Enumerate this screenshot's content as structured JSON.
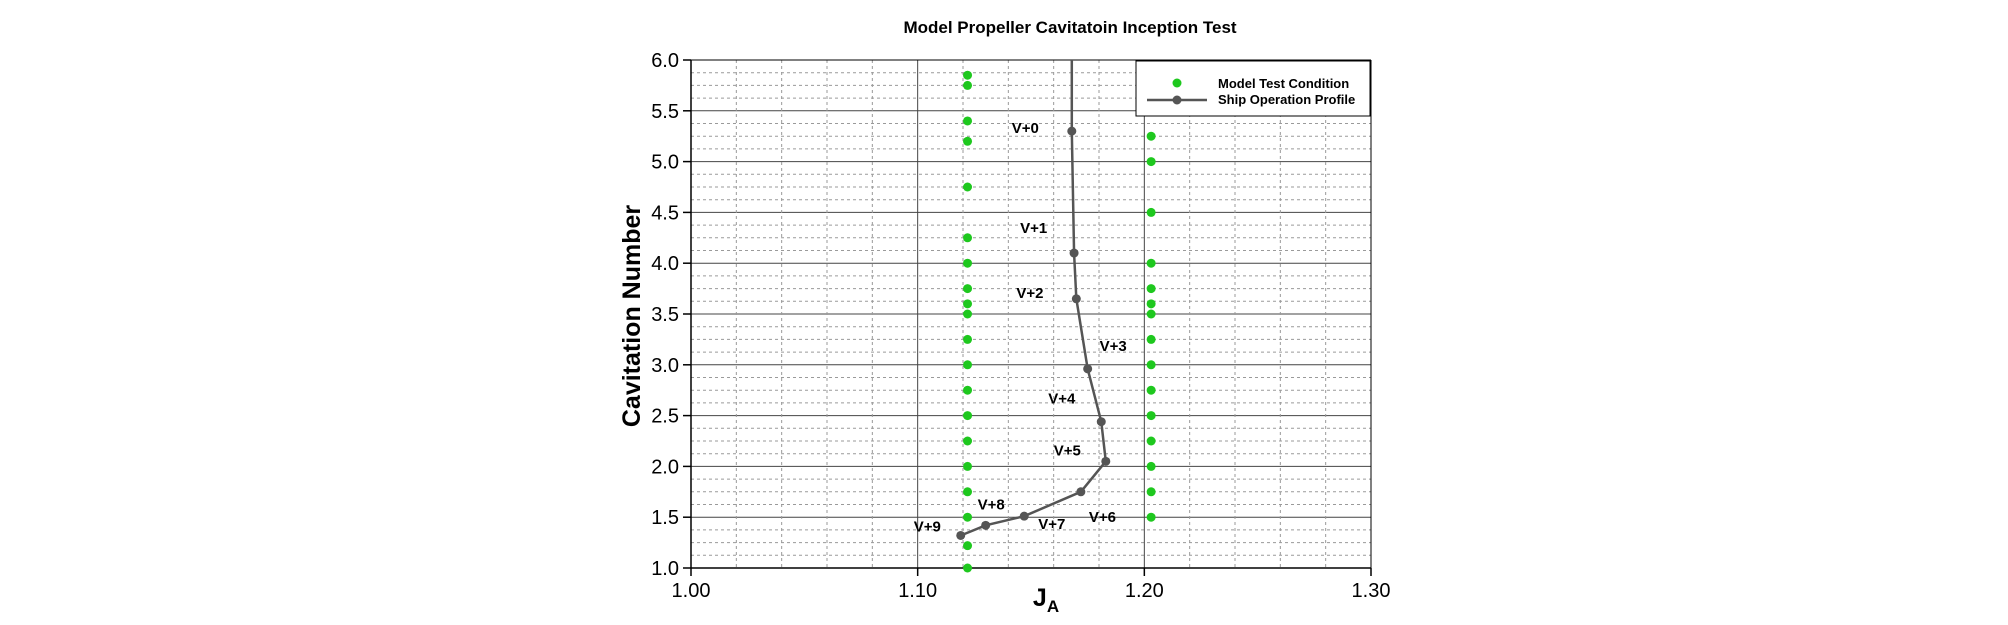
{
  "chart_data": {
    "type": "scatter",
    "title": "Model Propeller Cavitatoin Inception Test",
    "xlabel_main": "J",
    "xlabel_sub": "A",
    "ylabel": "Cavitation Number",
    "xlim": [
      1.0,
      1.3
    ],
    "ylim": [
      1.0,
      6.0
    ],
    "x_ticks": [
      "1.00",
      "1.10",
      "1.20",
      "1.30"
    ],
    "y_ticks": [
      "1.0",
      "1.5",
      "2.0",
      "2.5",
      "3.0",
      "3.5",
      "4.0",
      "4.5",
      "5.0",
      "5.5",
      "6.0"
    ],
    "grid": true,
    "legend_position": "top-right",
    "colors": {
      "model": "#1ec81e",
      "ship": "#555555"
    },
    "series": [
      {
        "name": "Model Test Condition",
        "style": "markers",
        "points": [
          [
            1.122,
            5.85
          ],
          [
            1.122,
            5.75
          ],
          [
            1.122,
            5.4
          ],
          [
            1.122,
            5.2
          ],
          [
            1.122,
            4.75
          ],
          [
            1.122,
            4.25
          ],
          [
            1.122,
            4.0
          ],
          [
            1.122,
            3.75
          ],
          [
            1.122,
            3.6
          ],
          [
            1.122,
            3.5
          ],
          [
            1.122,
            3.25
          ],
          [
            1.122,
            3.0
          ],
          [
            1.122,
            2.75
          ],
          [
            1.122,
            2.5
          ],
          [
            1.122,
            2.25
          ],
          [
            1.122,
            2.0
          ],
          [
            1.122,
            1.75
          ],
          [
            1.122,
            1.5
          ],
          [
            1.122,
            1.22
          ],
          [
            1.122,
            1.0
          ],
          [
            1.203,
            5.25
          ],
          [
            1.203,
            5.0
          ],
          [
            1.203,
            4.5
          ],
          [
            1.203,
            4.0
          ],
          [
            1.203,
            3.75
          ],
          [
            1.203,
            3.6
          ],
          [
            1.203,
            3.5
          ],
          [
            1.203,
            3.25
          ],
          [
            1.203,
            3.0
          ],
          [
            1.203,
            2.75
          ],
          [
            1.203,
            2.5
          ],
          [
            1.203,
            2.25
          ],
          [
            1.203,
            2.0
          ],
          [
            1.203,
            1.75
          ],
          [
            1.203,
            1.5
          ]
        ]
      },
      {
        "name": "Ship Operation Profile",
        "style": "line-markers",
        "line_top": [
          1.168,
          6.0
        ],
        "points": [
          {
            "label": "V+0",
            "x": 1.168,
            "y": 5.3
          },
          {
            "label": "V+1",
            "x": 1.169,
            "y": 4.1
          },
          {
            "label": "V+2",
            "x": 1.17,
            "y": 3.65
          },
          {
            "label": "V+3",
            "x": 1.175,
            "y": 2.96
          },
          {
            "label": "V+4",
            "x": 1.181,
            "y": 2.44
          },
          {
            "label": "V+5",
            "x": 1.183,
            "y": 2.05
          },
          {
            "label": "V+6",
            "x": 1.172,
            "y": 1.75
          },
          {
            "label": "V+7",
            "x": 1.147,
            "y": 1.51
          },
          {
            "label": "V+8",
            "x": 1.13,
            "y": 1.42
          },
          {
            "label": "V+9",
            "x": 1.119,
            "y": 1.32
          }
        ]
      }
    ]
  }
}
